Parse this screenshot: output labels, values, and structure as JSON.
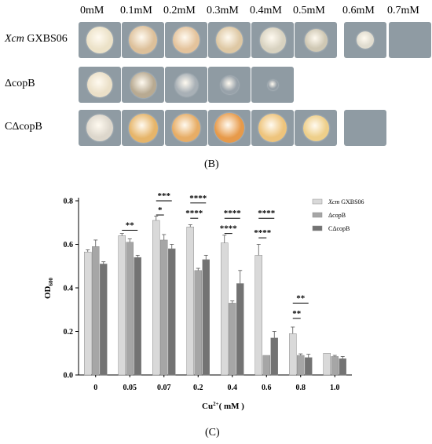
{
  "panel_b": {
    "concentrations": [
      "0mM",
      "0.1mM",
      "0.2mM",
      "0.3mM",
      "0.4mM",
      "0.5mM",
      "0.6mM",
      "0.7mM"
    ],
    "rows": [
      {
        "label_italic": "Xcm",
        "label_rest": " GXBS06",
        "colonies": [
          {
            "size": 0.82,
            "color": "#ece2c8"
          },
          {
            "size": 0.85,
            "color": "#ddc09a"
          },
          {
            "size": 0.8,
            "color": "#e4c39c"
          },
          {
            "size": 0.8,
            "color": "#dec8a4"
          },
          {
            "size": 0.78,
            "color": "#d8d2c0"
          },
          {
            "size": 0.7,
            "color": "#cfc8b4"
          },
          {
            "size": 0.52,
            "color": "#e0dccf"
          },
          {
            "size": 0,
            "color": ""
          }
        ]
      },
      {
        "label_italic": "",
        "label_rest": "ΔcopB",
        "colonies": [
          {
            "size": 0.75,
            "color": "#ebe0c8"
          },
          {
            "size": 0.78,
            "color": "#b8aa92"
          },
          {
            "size": 0.7,
            "color": "#a8b0b6"
          },
          {
            "size": 0.55,
            "color": "#98a2aa"
          },
          {
            "size": 0.3,
            "color": "#959fa7"
          }
        ]
      },
      {
        "label_italic": "",
        "label_rest": "CΔcopB",
        "colonies": [
          {
            "size": 0.82,
            "color": "#ddd7cc"
          },
          {
            "size": 0.88,
            "color": "#e6b56a"
          },
          {
            "size": 0.85,
            "color": "#e7ad66"
          },
          {
            "size": 0.9,
            "color": "#e79a4a"
          },
          {
            "size": 0.85,
            "color": "#eec47c"
          },
          {
            "size": 0.78,
            "color": "#eecf8a"
          },
          {
            "size": 0,
            "color": ""
          }
        ]
      }
    ],
    "caption": "(B)"
  },
  "caption_c": "(C)",
  "chart_data": {
    "type": "bar",
    "categories": [
      "0",
      "0.05",
      "0.07",
      "0.2",
      "0.4",
      "0.6",
      "0.8",
      "1.0"
    ],
    "ylabel": "OD600",
    "ylabel_main": "OD",
    "ylabel_sub": "600",
    "xlabel": "Cu2+( mM )",
    "xlabel_base": "Cu",
    "xlabel_sup": "2+",
    "xlabel_rest": "( mM )",
    "ylim": [
      0,
      0.8
    ],
    "yticks": [
      "0.0",
      "0.2",
      "0.4",
      "0.6",
      "0.8"
    ],
    "series": [
      {
        "name": "Xcm GXBS06",
        "legend_italic": "Xcm",
        "legend_rest": " GXBS06",
        "color": "#d9d9d9",
        "values": [
          0.565,
          0.64,
          0.71,
          0.68,
          0.607,
          0.55,
          0.19,
          0.1
        ],
        "errors": [
          0.01,
          0.01,
          0.02,
          0.01,
          0.035,
          0.05,
          0.03,
          0.0
        ]
      },
      {
        "name": "ΔcopB",
        "legend_italic": "",
        "legend_rest": "ΔcopB",
        "color": "#a6a6a6",
        "values": [
          0.59,
          0.61,
          0.62,
          0.48,
          0.33,
          0.09,
          0.09,
          0.085
        ],
        "errors": [
          0.03,
          0.015,
          0.025,
          0.01,
          0.01,
          0.0,
          0.007,
          0.005
        ]
      },
      {
        "name": "CΔcopB",
        "legend_italic": "",
        "legend_rest": "CΔcopB",
        "color": "#737373",
        "values": [
          0.51,
          0.54,
          0.58,
          0.53,
          0.42,
          0.17,
          0.08,
          0.075
        ],
        "errors": [
          0.01,
          0.01,
          0.02,
          0.02,
          0.06,
          0.03,
          0.015,
          0.01
        ]
      }
    ],
    "annotations": [
      {
        "group": 1,
        "from": 0,
        "to": 2,
        "level": 0.665,
        "text": "**"
      },
      {
        "group": 2,
        "from": 0,
        "to": 1,
        "level": 0.735,
        "text": "*"
      },
      {
        "group": 2,
        "from": 0,
        "to": 2,
        "level": 0.8,
        "text": "***"
      },
      {
        "group": 3,
        "from": 0,
        "to": 1,
        "level": 0.72,
        "text": "****"
      },
      {
        "group": 3,
        "from": 0,
        "to": 2,
        "level": 0.79,
        "text": "****"
      },
      {
        "group": 4,
        "from": 0,
        "to": 1,
        "level": 0.65,
        "text": "****"
      },
      {
        "group": 4,
        "from": 0,
        "to": 2,
        "level": 0.72,
        "text": "****"
      },
      {
        "group": 5,
        "from": 0,
        "to": 1,
        "level": 0.63,
        "text": "****"
      },
      {
        "group": 5,
        "from": 0,
        "to": 2,
        "level": 0.72,
        "text": "****"
      },
      {
        "group": 6,
        "from": 0,
        "to": 1,
        "level": 0.26,
        "text": "**"
      },
      {
        "group": 6,
        "from": 0,
        "to": 2,
        "level": 0.33,
        "text": "**"
      }
    ],
    "legend_position": "top-right"
  }
}
